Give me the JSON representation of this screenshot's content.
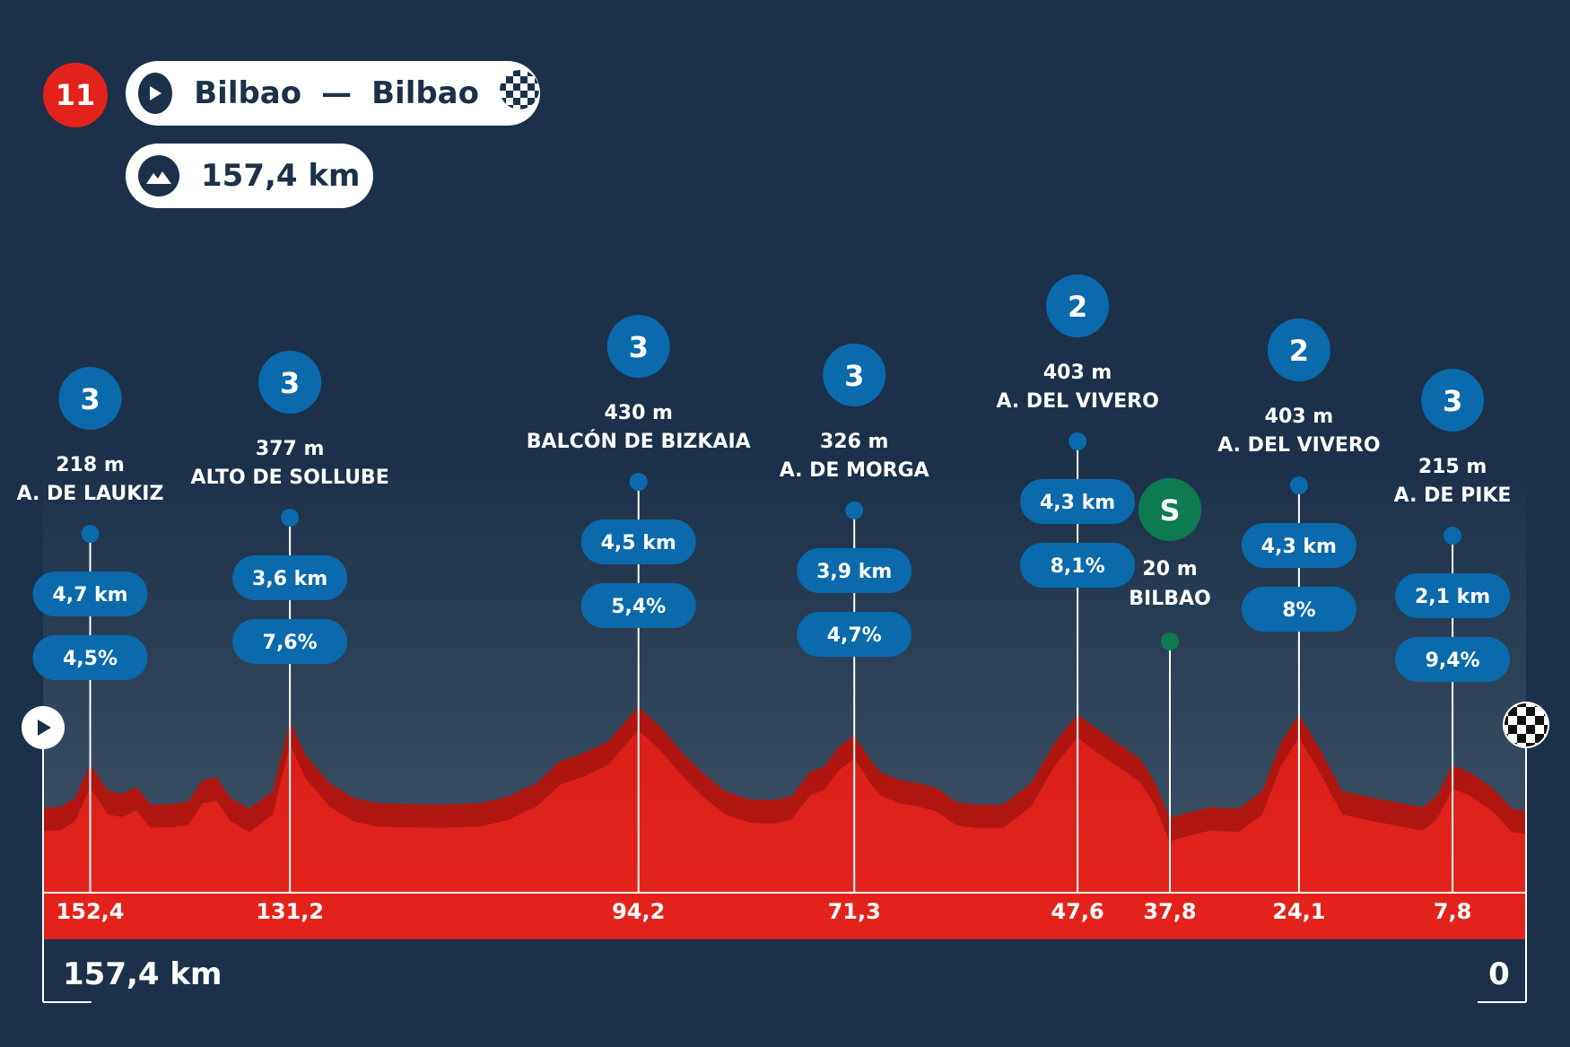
{
  "header": {
    "stage_number": "11",
    "start_city": "Bilbao",
    "separator": "—",
    "finish_city": "Bilbao",
    "distance": "157,4 km"
  },
  "footer": {
    "total_label": "157,4 km",
    "zero_label": "0"
  },
  "colors": {
    "background": "#1c3049",
    "profile_red": "#e3231b",
    "profile_dark_red": "#a8150f",
    "climb_blue": "#0a6aab",
    "sprint_green": "#0e7a52",
    "stage_badge": "#e3231b"
  },
  "chart_data": {
    "type": "area",
    "x_unit": "km to finish",
    "x_range": [
      157.4,
      0
    ],
    "profile": [
      {
        "km": 157.4,
        "alt": 58
      },
      {
        "km": 155.5,
        "alt": 62
      },
      {
        "km": 154.0,
        "alt": 95
      },
      {
        "km": 152.4,
        "alt": 218
      },
      {
        "km": 150.5,
        "alt": 120
      },
      {
        "km": 149.0,
        "alt": 110
      },
      {
        "km": 147.5,
        "alt": 135
      },
      {
        "km": 146.0,
        "alt": 70
      },
      {
        "km": 144.0,
        "alt": 72
      },
      {
        "km": 142.0,
        "alt": 80
      },
      {
        "km": 140.5,
        "alt": 160
      },
      {
        "km": 139.0,
        "alt": 170
      },
      {
        "km": 137.5,
        "alt": 95
      },
      {
        "km": 135.5,
        "alt": 55
      },
      {
        "km": 133.0,
        "alt": 120
      },
      {
        "km": 131.2,
        "alt": 377
      },
      {
        "km": 129.5,
        "alt": 250
      },
      {
        "km": 127.0,
        "alt": 150
      },
      {
        "km": 124.5,
        "alt": 95
      },
      {
        "km": 122.0,
        "alt": 75
      },
      {
        "km": 119.0,
        "alt": 72
      },
      {
        "km": 115.0,
        "alt": 70
      },
      {
        "km": 111.0,
        "alt": 75
      },
      {
        "km": 108.0,
        "alt": 100
      },
      {
        "km": 105.0,
        "alt": 150
      },
      {
        "km": 102.5,
        "alt": 230
      },
      {
        "km": 100.0,
        "alt": 260
      },
      {
        "km": 97.5,
        "alt": 300
      },
      {
        "km": 94.2,
        "alt": 430
      },
      {
        "km": 92.0,
        "alt": 360
      },
      {
        "km": 89.5,
        "alt": 260
      },
      {
        "km": 87.5,
        "alt": 190
      },
      {
        "km": 85.0,
        "alt": 120
      },
      {
        "km": 82.5,
        "alt": 90
      },
      {
        "km": 80.0,
        "alt": 85
      },
      {
        "km": 78.0,
        "alt": 100
      },
      {
        "km": 76.0,
        "alt": 190
      },
      {
        "km": 74.5,
        "alt": 210
      },
      {
        "km": 73.0,
        "alt": 280
      },
      {
        "km": 71.3,
        "alt": 326
      },
      {
        "km": 69.5,
        "alt": 230
      },
      {
        "km": 68.5,
        "alt": 190
      },
      {
        "km": 66.5,
        "alt": 160
      },
      {
        "km": 64.5,
        "alt": 150
      },
      {
        "km": 62.5,
        "alt": 130
      },
      {
        "km": 60.5,
        "alt": 80
      },
      {
        "km": 58.5,
        "alt": 70
      },
      {
        "km": 55.5,
        "alt": 70
      },
      {
        "km": 52.5,
        "alt": 150
      },
      {
        "km": 50.0,
        "alt": 300
      },
      {
        "km": 47.6,
        "alt": 403
      },
      {
        "km": 46.0,
        "alt": 360
      },
      {
        "km": 43.5,
        "alt": 300
      },
      {
        "km": 41.0,
        "alt": 240
      },
      {
        "km": 39.5,
        "alt": 160
      },
      {
        "km": 37.8,
        "alt": 20
      },
      {
        "km": 36.0,
        "alt": 40
      },
      {
        "km": 33.5,
        "alt": 60
      },
      {
        "km": 30.5,
        "alt": 55
      },
      {
        "km": 28.0,
        "alt": 120
      },
      {
        "km": 26.0,
        "alt": 300
      },
      {
        "km": 24.1,
        "alt": 403
      },
      {
        "km": 22.0,
        "alt": 280
      },
      {
        "km": 19.5,
        "alt": 120
      },
      {
        "km": 17.0,
        "alt": 100
      },
      {
        "km": 14.0,
        "alt": 80
      },
      {
        "km": 11.0,
        "alt": 60
      },
      {
        "km": 9.5,
        "alt": 100
      },
      {
        "km": 7.8,
        "alt": 215
      },
      {
        "km": 6.0,
        "alt": 190
      },
      {
        "km": 3.5,
        "alt": 130
      },
      {
        "km": 1.5,
        "alt": 55
      },
      {
        "km": 0.0,
        "alt": 48
      }
    ],
    "climbs": [
      {
        "cat": "3",
        "km": 152.4,
        "km_label": "152,4",
        "alt_label": "218 m",
        "name": "A. DE LAUKIZ",
        "length": "4,7 km",
        "grade": "4,5%"
      },
      {
        "cat": "3",
        "km": 131.2,
        "km_label": "131,2",
        "alt_label": "377 m",
        "name": "ALTO DE SOLLUBE",
        "length": "3,6 km",
        "grade": "7,6%"
      },
      {
        "cat": "3",
        "km": 94.2,
        "km_label": "94,2",
        "alt_label": "430 m",
        "name": "BALCÓN DE BIZKAIA",
        "length": "4,5 km",
        "grade": "5,4%"
      },
      {
        "cat": "3",
        "km": 71.3,
        "km_label": "71,3",
        "alt_label": "326 m",
        "name": "A. DE MORGA",
        "length": "3,9 km",
        "grade": "4,7%"
      },
      {
        "cat": "2",
        "km": 47.6,
        "km_label": "47,6",
        "alt_label": "403 m",
        "name": "A. DEL VIVERO",
        "length": "4,3 km",
        "grade": "8,1%"
      },
      {
        "cat": "2",
        "km": 24.1,
        "km_label": "24,1",
        "alt_label": "403 m",
        "name": "A. DEL VIVERO",
        "length": "4,3 km",
        "grade": "8%"
      },
      {
        "cat": "3",
        "km": 7.8,
        "km_label": "7,8",
        "alt_label": "215 m",
        "name": "A. DE PIKE",
        "length": "2,1 km",
        "grade": "9,4%"
      }
    ],
    "sprints": [
      {
        "label": "S",
        "km": 37.8,
        "km_label": "37,8",
        "alt_label": "20 m",
        "name": "BILBAO"
      }
    ]
  }
}
